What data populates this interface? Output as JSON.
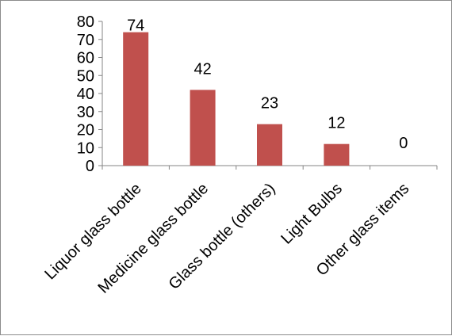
{
  "chart_data": {
    "type": "bar",
    "categories": [
      "Liquor glass bottle",
      "Medicine glass bottle",
      "Glass bottle (others)",
      "Light Bulbs",
      "Other glass items"
    ],
    "values": [
      74,
      42,
      23,
      12,
      0
    ],
    "data_labels": [
      "74",
      "42",
      "23",
      "12",
      "0"
    ],
    "y_ticks": [
      "0",
      "10",
      "20",
      "30",
      "40",
      "50",
      "60",
      "70",
      "80"
    ],
    "ylim": [
      0,
      80
    ],
    "bar_color": "#c0504d",
    "grid": false,
    "legend": "none"
  }
}
